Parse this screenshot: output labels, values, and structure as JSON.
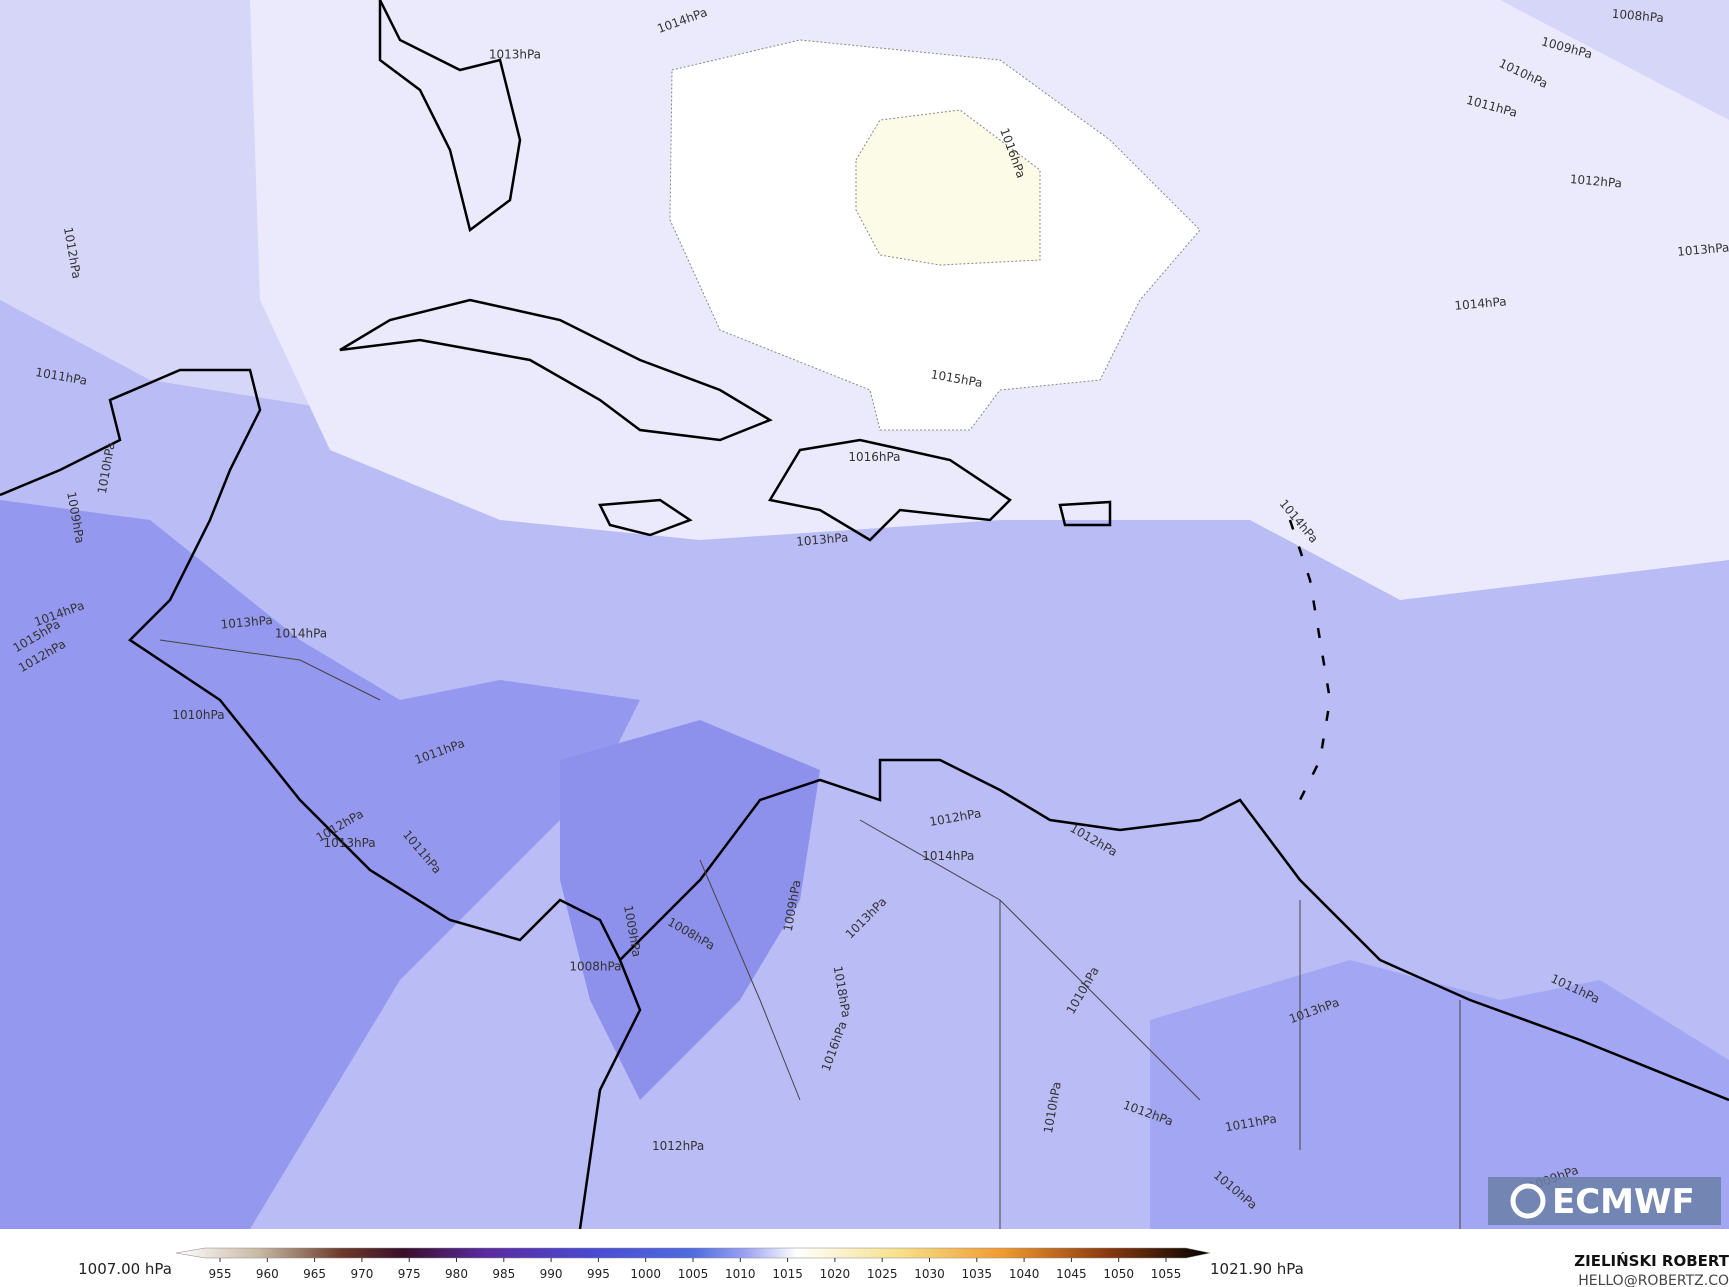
{
  "map": {
    "contour_labels": [
      "1014hPa",
      "1013hPa",
      "1008hPa",
      "1009hPa",
      "1010hPa",
      "1011hPa",
      "1012hPa",
      "1013hPa",
      "1014hPa",
      "1016hPa",
      "1015hPa",
      "1012hPa",
      "1011hPa",
      "1010hPa",
      "1009hPa",
      "1016hPa",
      "1013hPa",
      "1014hPa",
      "1014hPa",
      "1015hPa",
      "1012hPa",
      "1013hPa",
      "1014hPa",
      "1010hPa",
      "1011hPa",
      "1011hPa",
      "1012hPa",
      "1013hPa",
      "1009hPa",
      "1008hPa",
      "1008hPa",
      "1009hPa",
      "1013hPa",
      "1012hPa",
      "1014hPa",
      "1012hPa",
      "1018hPa",
      "1016hPa",
      "1010hPa",
      "1013hPa",
      "1011hPa",
      "1012hPa",
      "1011hPa",
      "1010hPa",
      "1010hPa",
      "1009hPa",
      "1012hPa"
    ]
  },
  "colorbar": {
    "min_label": "1007.00 hPa",
    "max_label": "1021.90 hPa",
    "ticks": [
      955,
      960,
      965,
      970,
      975,
      980,
      985,
      990,
      995,
      1000,
      1005,
      1010,
      1015,
      1020,
      1025,
      1030,
      1035,
      1040,
      1045,
      1050,
      1055
    ]
  },
  "credit": {
    "name": "ZIELIŃSKI ROBERT",
    "email": "HELLO@ROBERTZ.CO"
  },
  "logo": "ECMWF"
}
